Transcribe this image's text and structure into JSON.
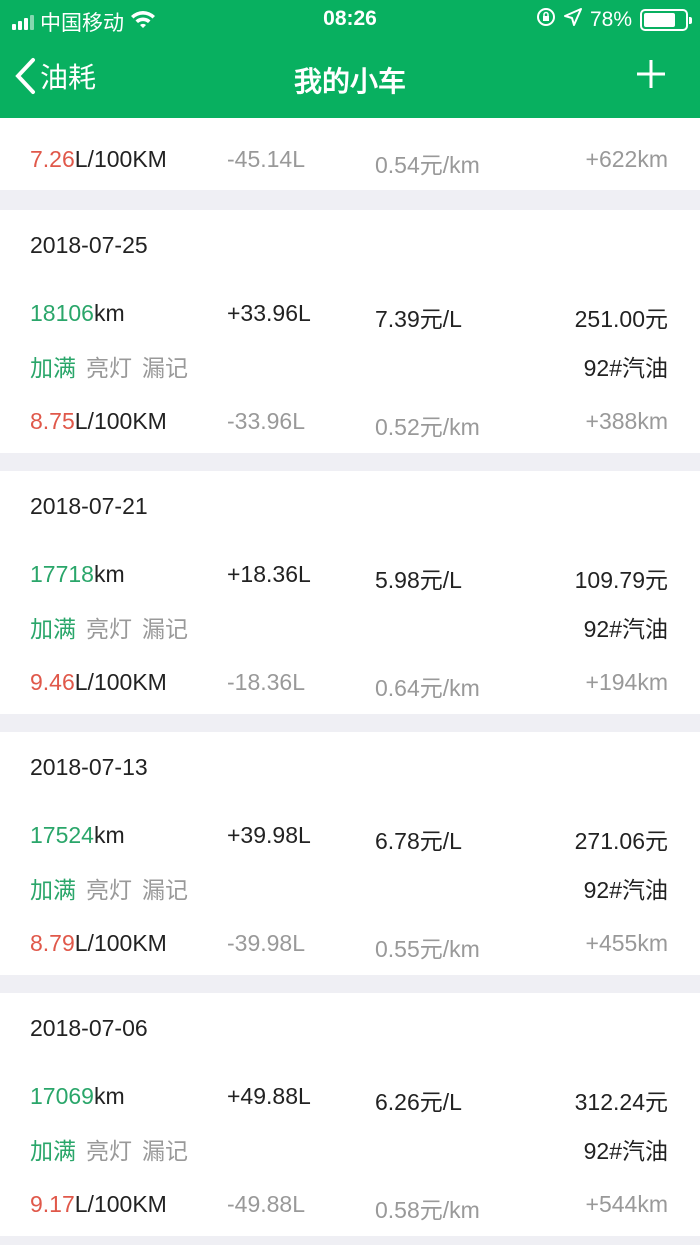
{
  "status_bar": {
    "carrier": "中国移动",
    "time": "08:26",
    "battery": "78%",
    "battery_level": 0.78
  },
  "nav": {
    "back_label": "油耗",
    "title": "我的小车",
    "add_icon": "plus-icon"
  },
  "colors": {
    "brand": "#08b060",
    "green_text": "#2aa66a",
    "red_text": "#e0584a",
    "grey_text": "#999999"
  },
  "partial": {
    "consumption": "7.26",
    "consumption_unit": "L/100KM",
    "used": "-45.14L",
    "cost_per_km": "0.54元/km",
    "distance": "+622km"
  },
  "records": [
    {
      "date": "2018-07-25",
      "odometer": "18106",
      "odometer_unit": "km",
      "added": "+33.96L",
      "price": "7.39元/L",
      "total": "251.00元",
      "tags": [
        "加满",
        "亮灯",
        "漏记"
      ],
      "fuel": "92#汽油",
      "consumption": "8.75",
      "consumption_unit": "L/100KM",
      "used": "-33.96L",
      "cost_per_km": "0.52元/km",
      "distance": "+388km"
    },
    {
      "date": "2018-07-21",
      "odometer": "17718",
      "odometer_unit": "km",
      "added": "+18.36L",
      "price": "5.98元/L",
      "total": "109.79元",
      "tags": [
        "加满",
        "亮灯",
        "漏记"
      ],
      "fuel": "92#汽油",
      "consumption": "9.46",
      "consumption_unit": "L/100KM",
      "used": "-18.36L",
      "cost_per_km": "0.64元/km",
      "distance": "+194km"
    },
    {
      "date": "2018-07-13",
      "odometer": "17524",
      "odometer_unit": "km",
      "added": "+39.98L",
      "price": "6.78元/L",
      "total": "271.06元",
      "tags": [
        "加满",
        "亮灯",
        "漏记"
      ],
      "fuel": "92#汽油",
      "consumption": "8.79",
      "consumption_unit": "L/100KM",
      "used": "-39.98L",
      "cost_per_km": "0.55元/km",
      "distance": "+455km"
    },
    {
      "date": "2018-07-06",
      "odometer": "17069",
      "odometer_unit": "km",
      "added": "+49.88L",
      "price": "6.26元/L",
      "total": "312.24元",
      "tags": [
        "加满",
        "亮灯",
        "漏记"
      ],
      "fuel": "92#汽油",
      "consumption": "9.17",
      "consumption_unit": "L/100KM",
      "used": "-49.88L",
      "cost_per_km": "0.58元/km",
      "distance": "+544km"
    }
  ]
}
